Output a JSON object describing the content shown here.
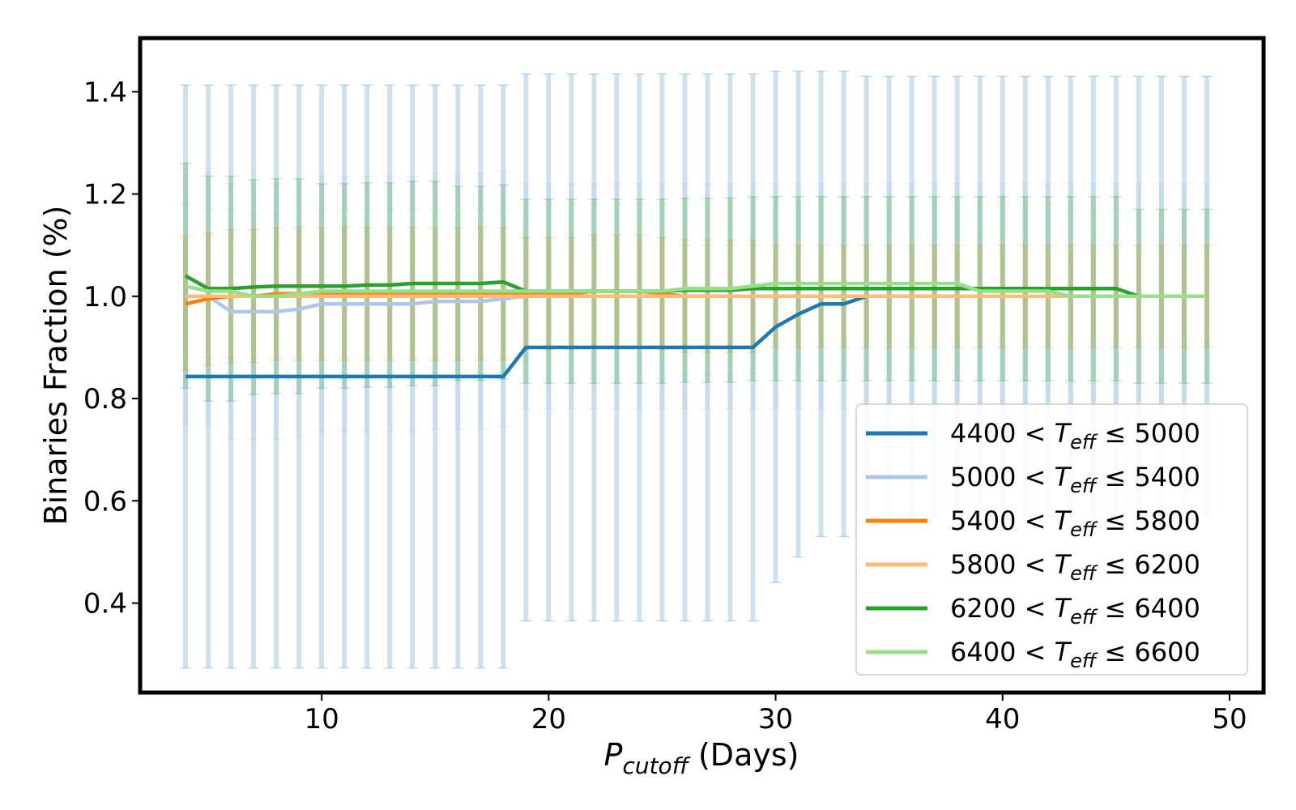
{
  "chart_data": {
    "type": "line",
    "xlabel": {
      "main": "P",
      "sub": "cutoff",
      "rest": " (Days)"
    },
    "ylabel": "Binaries Fraction (%)",
    "xlim": [
      2,
      51.5
    ],
    "ylim": [
      0.225,
      1.505
    ],
    "xticks": [
      10,
      20,
      30,
      40,
      50
    ],
    "yticks": [
      0.4,
      0.6,
      0.8,
      1.0,
      1.2,
      1.4
    ],
    "x": [
      4,
      5,
      6,
      7,
      8,
      9,
      10,
      11,
      12,
      13,
      14,
      15,
      16,
      17,
      18,
      19,
      20,
      21,
      22,
      23,
      24,
      25,
      26,
      27,
      28,
      29,
      30,
      31,
      32,
      33,
      34,
      35,
      36,
      37,
      38,
      39,
      40,
      41,
      42,
      43,
      44,
      45,
      46,
      47,
      48,
      49
    ],
    "legend_position": "lower right",
    "legend_prefix": "<",
    "legend_sym": {
      "main": "T",
      "sub": "eff",
      "rel": "≤"
    },
    "series": [
      {
        "name_lo": "4400",
        "name_hi": "5000",
        "color": "#1f77b4",
        "values": [
          0.843,
          0.843,
          0.843,
          0.843,
          0.843,
          0.843,
          0.843,
          0.843,
          0.843,
          0.843,
          0.843,
          0.843,
          0.843,
          0.843,
          0.843,
          0.9,
          0.9,
          0.9,
          0.9,
          0.9,
          0.9,
          0.9,
          0.9,
          0.9,
          0.9,
          0.9,
          0.94,
          0.965,
          0.985,
          0.985,
          1.0,
          1.0,
          1.0,
          1.0,
          1.0,
          1.0,
          1.0,
          1.0,
          1.0,
          1.0,
          1.0,
          1.0,
          1.0,
          1.0,
          1.0,
          1.0
        ],
        "err": [
          0.57,
          0.57,
          0.57,
          0.57,
          0.57,
          0.57,
          0.57,
          0.57,
          0.57,
          0.57,
          0.57,
          0.57,
          0.57,
          0.57,
          0.57,
          0.535,
          0.535,
          0.535,
          0.535,
          0.535,
          0.535,
          0.535,
          0.535,
          0.535,
          0.535,
          0.535,
          0.5,
          0.475,
          0.455,
          0.455,
          0.43,
          0.43,
          0.43,
          0.43,
          0.43,
          0.43,
          0.43,
          0.43,
          0.43,
          0.43,
          0.43,
          0.43,
          0.43,
          0.43,
          0.43,
          0.43
        ]
      },
      {
        "name_lo": "5000",
        "name_hi": "5400",
        "color": "#aec7e8",
        "values": [
          1.0,
          1.0,
          0.97,
          0.97,
          0.97,
          0.975,
          0.985,
          0.985,
          0.985,
          0.985,
          0.985,
          0.99,
          0.99,
          0.99,
          0.995,
          1.0,
          1.0,
          1.0,
          1.0,
          1.0,
          1.0,
          1.0,
          1.0,
          1.0,
          1.0,
          1.0,
          1.0,
          1.0,
          1.0,
          1.0,
          1.0,
          1.0,
          1.0,
          1.0,
          1.0,
          1.0,
          1.0,
          1.0,
          1.0,
          1.0,
          1.0,
          1.0,
          1.0,
          1.0,
          1.0,
          1.0
        ],
        "err": [
          0.25,
          0.25,
          0.25,
          0.25,
          0.25,
          0.25,
          0.25,
          0.25,
          0.25,
          0.25,
          0.25,
          0.25,
          0.25,
          0.25,
          0.25,
          0.22,
          0.22,
          0.22,
          0.22,
          0.22,
          0.22,
          0.22,
          0.22,
          0.22,
          0.22,
          0.22,
          0.22,
          0.22,
          0.22,
          0.22,
          0.22,
          0.22,
          0.22,
          0.22,
          0.22,
          0.22,
          0.22,
          0.22,
          0.22,
          0.22,
          0.22,
          0.22,
          0.22,
          0.22,
          0.22,
          0.22
        ]
      },
      {
        "name_lo": "5400",
        "name_hi": "5800",
        "color": "#ff7f0e",
        "values": [
          0.985,
          0.995,
          1.0,
          1.0,
          1.005,
          1.005,
          1.005,
          1.005,
          1.005,
          1.005,
          1.005,
          1.005,
          1.005,
          1.005,
          1.005,
          1.005,
          1.005,
          1.005,
          1.01,
          1.01,
          1.01,
          1.005,
          1.0,
          1.0,
          1.0,
          1.0,
          1.0,
          1.0,
          1.0,
          1.0,
          1.0,
          1.0,
          1.0,
          1.0,
          1.0,
          1.0,
          1.0,
          1.0,
          1.0,
          1.0,
          1.0,
          1.0,
          1.0,
          1.0,
          1.0,
          1.0
        ],
        "err": [
          0.13,
          0.13,
          0.13,
          0.13,
          0.13,
          0.13,
          0.13,
          0.13,
          0.13,
          0.13,
          0.13,
          0.13,
          0.13,
          0.13,
          0.13,
          0.11,
          0.11,
          0.11,
          0.11,
          0.11,
          0.11,
          0.11,
          0.11,
          0.11,
          0.11,
          0.11,
          0.1,
          0.1,
          0.1,
          0.1,
          0.1,
          0.1,
          0.1,
          0.1,
          0.1,
          0.1,
          0.1,
          0.1,
          0.1,
          0.1,
          0.1,
          0.1,
          0.1,
          0.1,
          0.1,
          0.1
        ]
      },
      {
        "name_lo": "5800",
        "name_hi": "6200",
        "color": "#ffbb78",
        "values": [
          1.0,
          1.0,
          1.0,
          1.0,
          1.0,
          1.0,
          1.0,
          1.0,
          1.0,
          1.0,
          1.0,
          1.0,
          1.0,
          1.0,
          1.0,
          1.0,
          1.0,
          1.0,
          1.0,
          1.0,
          1.0,
          1.0,
          1.0,
          1.0,
          1.0,
          1.0,
          1.0,
          1.0,
          1.0,
          1.0,
          1.0,
          1.0,
          1.0,
          1.0,
          1.0,
          1.0,
          1.0,
          1.0,
          1.0,
          1.0,
          1.0,
          1.0,
          1.0,
          1.0,
          1.0,
          1.0
        ],
        "err": [
          0.12,
          0.12,
          0.12,
          0.12,
          0.12,
          0.12,
          0.12,
          0.12,
          0.12,
          0.12,
          0.12,
          0.12,
          0.12,
          0.12,
          0.12,
          0.1,
          0.1,
          0.1,
          0.1,
          0.1,
          0.1,
          0.1,
          0.1,
          0.1,
          0.1,
          0.1,
          0.09,
          0.09,
          0.09,
          0.09,
          0.09,
          0.09,
          0.09,
          0.09,
          0.09,
          0.09,
          0.09,
          0.09,
          0.09,
          0.09,
          0.09,
          0.09,
          0.09,
          0.09,
          0.09,
          0.09
        ]
      },
      {
        "name_lo": "6200",
        "name_hi": "6400",
        "color": "#2ca02c",
        "values": [
          1.04,
          1.015,
          1.015,
          1.018,
          1.02,
          1.02,
          1.02,
          1.02,
          1.022,
          1.022,
          1.025,
          1.025,
          1.025,
          1.025,
          1.028,
          1.01,
          1.01,
          1.01,
          1.01,
          1.01,
          1.01,
          1.01,
          1.012,
          1.012,
          1.012,
          1.015,
          1.015,
          1.015,
          1.015,
          1.015,
          1.015,
          1.015,
          1.015,
          1.015,
          1.015,
          1.015,
          1.015,
          1.015,
          1.015,
          1.015,
          1.015,
          1.015,
          1.0,
          1.0,
          1.0,
          1.0
        ],
        "err": [
          0.22,
          0.22,
          0.22,
          0.21,
          0.21,
          0.21,
          0.2,
          0.2,
          0.2,
          0.2,
          0.2,
          0.2,
          0.19,
          0.19,
          0.19,
          0.18,
          0.18,
          0.18,
          0.18,
          0.18,
          0.18,
          0.18,
          0.18,
          0.18,
          0.18,
          0.18,
          0.18,
          0.18,
          0.18,
          0.18,
          0.18,
          0.18,
          0.18,
          0.18,
          0.18,
          0.18,
          0.18,
          0.18,
          0.18,
          0.18,
          0.18,
          0.18,
          0.17,
          0.17,
          0.17,
          0.17
        ]
      },
      {
        "name_lo": "6400",
        "name_hi": "6600",
        "color": "#98df8a",
        "values": [
          1.02,
          1.01,
          1.01,
          1.0,
          1.0,
          1.005,
          1.01,
          1.01,
          1.01,
          1.01,
          1.01,
          1.01,
          1.01,
          1.01,
          1.01,
          1.01,
          1.01,
          1.01,
          1.01,
          1.01,
          1.01,
          1.01,
          1.015,
          1.015,
          1.015,
          1.02,
          1.025,
          1.025,
          1.025,
          1.025,
          1.025,
          1.025,
          1.025,
          1.025,
          1.025,
          1.01,
          1.01,
          1.01,
          1.01,
          1.0,
          1.0,
          1.0,
          1.0,
          1.0,
          1.0,
          1.0
        ],
        "err": [
          0.16,
          0.16,
          0.16,
          0.16,
          0.16,
          0.16,
          0.16,
          0.16,
          0.16,
          0.16,
          0.16,
          0.16,
          0.16,
          0.16,
          0.16,
          0.17,
          0.17,
          0.17,
          0.17,
          0.17,
          0.17,
          0.17,
          0.17,
          0.17,
          0.17,
          0.17,
          0.17,
          0.17,
          0.17,
          0.17,
          0.17,
          0.17,
          0.17,
          0.17,
          0.17,
          0.17,
          0.17,
          0.17,
          0.17,
          0.17,
          0.17,
          0.17,
          0.17,
          0.17,
          0.17,
          0.17
        ]
      }
    ]
  }
}
